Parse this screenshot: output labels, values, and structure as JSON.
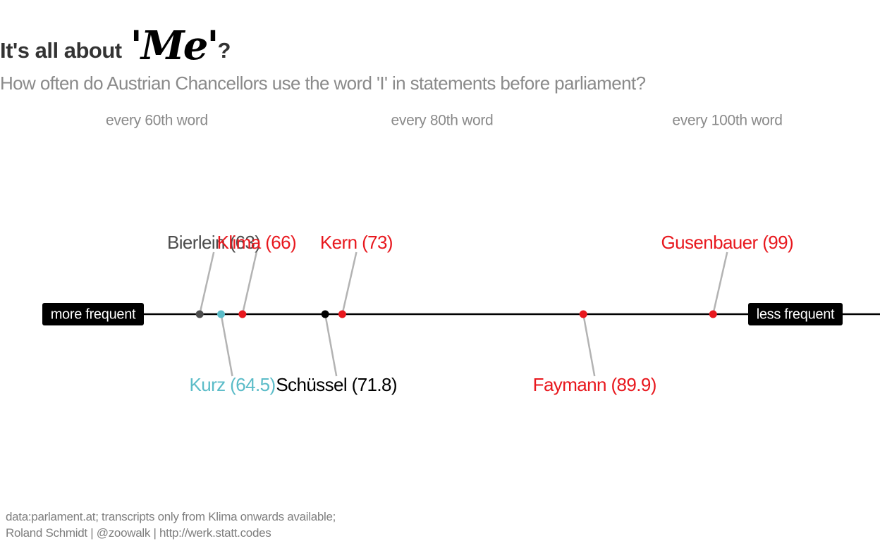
{
  "title": {
    "prefix": "It's all about",
    "emphasis": "'Me'",
    "suffix": "?"
  },
  "subtitle": "How often do Austrian Chancellors use the word 'I' in statements before parliament?",
  "caption": {
    "line1": "data:parlament.at; transcripts only from Klima onwards available;",
    "line2": "Roland Schmidt | @zoowalk | http://werk.statt.codes"
  },
  "chart_data": {
    "type": "scatter",
    "title": "It's all about 'Me'?",
    "subtitle": "How often do Austrian Chancellors use the word 'I' in statements before parliament?",
    "xlabel": "",
    "ylabel": "",
    "x_range": [
      52.5,
      113
    ],
    "x_ticks": [
      {
        "value": 60,
        "label": "every 60th word"
      },
      {
        "value": 80,
        "label": "every 80th word"
      },
      {
        "value": 100,
        "label": "every 100th word"
      }
    ],
    "axis_end_labels": {
      "left": "more frequent",
      "right": "less frequent"
    },
    "grid": false,
    "legend": "none",
    "series": [
      {
        "points": [
          {
            "label": "Bierlein (63)",
            "x": 63,
            "color": "#4d4d4d",
            "label_position": "above"
          },
          {
            "label": "Kurz (64.5)",
            "x": 64.5,
            "color": "#5bbcc8",
            "label_position": "below"
          },
          {
            "label": "Klima (66)",
            "x": 66,
            "color": "#e8181e",
            "label_position": "above"
          },
          {
            "label": "Schüssel (71.8)",
            "x": 71.8,
            "color": "#000000",
            "label_position": "below"
          },
          {
            "label": "Kern (73)",
            "x": 73,
            "color": "#e8181e",
            "label_position": "above"
          },
          {
            "label": "Faymann (89.9)",
            "x": 89.9,
            "color": "#e8181e",
            "label_position": "below"
          },
          {
            "label": "Gusenbauer (99)",
            "x": 99,
            "color": "#e8181e",
            "label_position": "above"
          }
        ]
      }
    ],
    "colors": {
      "axis": "#000000",
      "connector": "#b3b3b3",
      "tick_label": "#8a8a8a",
      "label_box": "#000000",
      "label_box_text": "#ffffff"
    }
  }
}
